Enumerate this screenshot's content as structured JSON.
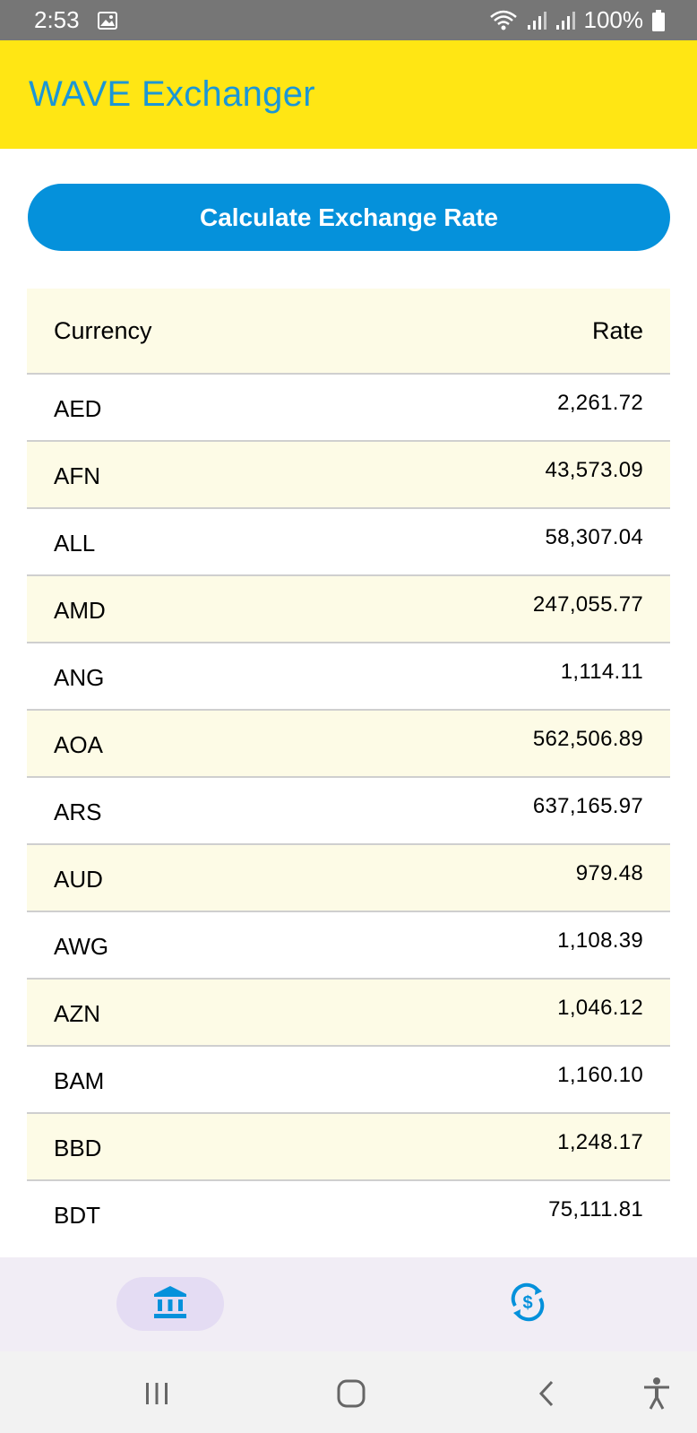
{
  "status_bar": {
    "time": "2:53",
    "battery": "100%",
    "icons": [
      "image-icon",
      "wifi-icon",
      "signal-icon",
      "signal-icon",
      "battery-icon"
    ]
  },
  "app_bar": {
    "title": "WAVE Exchanger"
  },
  "calculate_button": {
    "label": "Calculate Exchange Rate"
  },
  "table": {
    "headers": {
      "currency": "Currency",
      "rate": "Rate"
    },
    "rows": [
      {
        "code": "AED",
        "rate": "2,261.72"
      },
      {
        "code": "AFN",
        "rate": "43,573.09"
      },
      {
        "code": "ALL",
        "rate": "58,307.04"
      },
      {
        "code": "AMD",
        "rate": "247,055.77"
      },
      {
        "code": "ANG",
        "rate": "1,114.11"
      },
      {
        "code": "AOA",
        "rate": "562,506.89"
      },
      {
        "code": "ARS",
        "rate": "637,165.97"
      },
      {
        "code": "AUD",
        "rate": "979.48"
      },
      {
        "code": "AWG",
        "rate": "1,108.39"
      },
      {
        "code": "AZN",
        "rate": "1,046.12"
      },
      {
        "code": "BAM",
        "rate": "1,160.10"
      },
      {
        "code": "BBD",
        "rate": "1,248.17"
      },
      {
        "code": "BDT",
        "rate": "75,111.81"
      }
    ]
  },
  "bottom_nav": {
    "items": [
      {
        "icon": "bank-icon",
        "active": true
      },
      {
        "icon": "currency-exchange-icon",
        "active": false
      }
    ]
  },
  "system_nav": {
    "buttons": [
      "recent-apps-icon",
      "home-icon",
      "back-icon",
      "accessibility-icon"
    ]
  },
  "colors": {
    "app_bar_bg": "#ffe614",
    "title": "#1b96d6",
    "button": "#0591db",
    "row_alt": "#fdfbe6",
    "nav_bg": "#f1edf5",
    "nav_active": "#e4dcf3"
  }
}
